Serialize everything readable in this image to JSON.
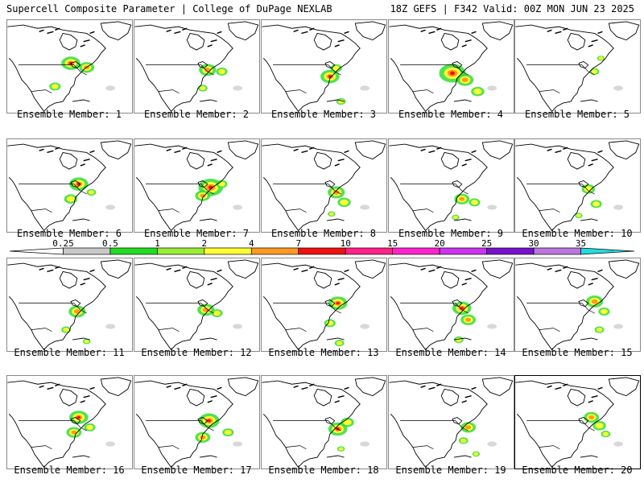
{
  "header": {
    "left": "Supercell Composite Parameter | College of DuPage NEXLAB",
    "right": "18Z GEFS | F342 Valid: 00Z MON JUN 23 2025"
  },
  "members": [
    "Ensemble Member: 1",
    "Ensemble Member: 2",
    "Ensemble Member: 3",
    "Ensemble Member: 4",
    "Ensemble Member: 5",
    "Ensemble Member: 6",
    "Ensemble Member: 7",
    "Ensemble Member: 8",
    "Ensemble Member: 9",
    "Ensemble Member: 10",
    "Ensemble Member: 11",
    "Ensemble Member: 12",
    "Ensemble Member: 13",
    "Ensemble Member: 14",
    "Ensemble Member: 15",
    "Ensemble Member: 16",
    "Ensemble Member: 17",
    "Ensemble Member: 18",
    "Ensemble Member: 19",
    "Ensemble Member: 20"
  ],
  "colorbar": {
    "ticks": [
      "0.25",
      "0.5",
      "1",
      "2",
      "4",
      "7",
      "10",
      "15",
      "20",
      "25",
      "30",
      "35"
    ],
    "colors": [
      "#ffffff",
      "#c8c8c8",
      "#22dd22",
      "#99ee33",
      "#ffff33",
      "#ff9922",
      "#ee1111",
      "#ff2288",
      "#ff22cc",
      "#cc33ee",
      "#7711cc",
      "#bb77dd",
      "#22dddd"
    ]
  }
}
